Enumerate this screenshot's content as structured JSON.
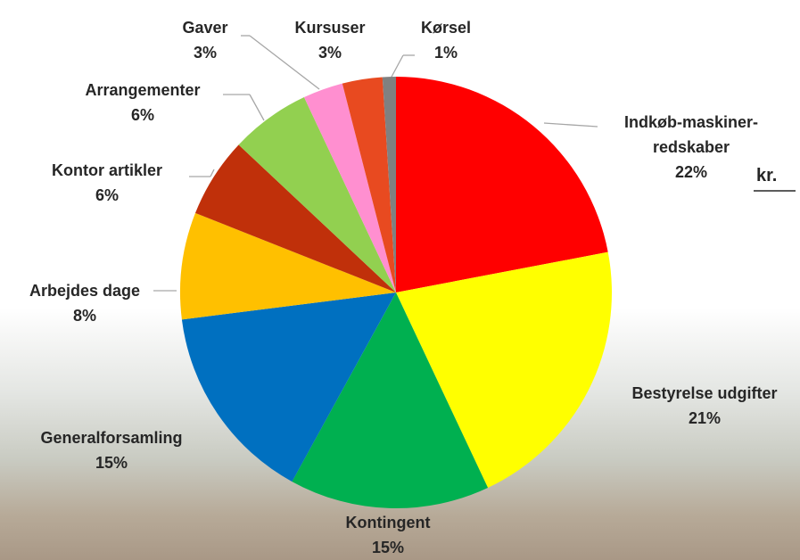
{
  "chart_data": {
    "type": "pie",
    "categories": [
      "Indkøb-maskiner-redskaber",
      "Bestyrelse udgifter",
      "Kontingent",
      "Generalforsamling",
      "Arbejdes dage",
      "Kontor artikler",
      "Arrangementer",
      "Gaver",
      "Kursuser",
      "Kørsel"
    ],
    "values": [
      22,
      21,
      15,
      15,
      8,
      6,
      6,
      3,
      3,
      1
    ],
    "value_labels": [
      "22%",
      "21%",
      "15%",
      "15%",
      "8%",
      "6%",
      "6%",
      "3%",
      "3%",
      "1%"
    ],
    "colors": [
      "#ff0000",
      "#ffff00",
      "#00b050",
      "#0070c0",
      "#ffc000",
      "#c0300a",
      "#92d050",
      "#ff8fd0",
      "#e84a20",
      "#808080"
    ],
    "annotation": "kr."
  }
}
